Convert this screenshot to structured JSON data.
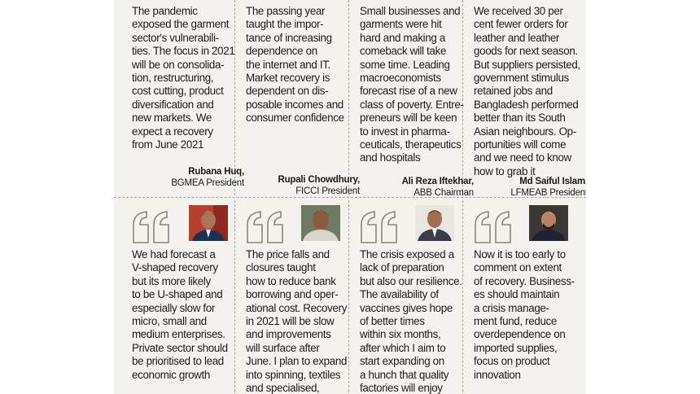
{
  "top_row": [
    {
      "quote": "The pandemic exposed the garment sector's vulnerabili-ties. The focus in 2021 will be on consolida-tion, restructuring, cost cutting, product diversification and new markets. We expect a recovery from June 2021",
      "lines": [
        "The pandemic",
        "exposed the garment",
        "sector's vulnerabili-",
        "ties. The focus in 2021",
        "will be on consolida-",
        "tion, restructuring,",
        "cost cutting, product",
        "diversification and",
        "new markets. We",
        "expect a recovery",
        "from June 2021"
      ],
      "name": "Rubana Huq,",
      "role": "BGMEA President"
    },
    {
      "lines": [
        "The passing year",
        "taught the impor-",
        "tance of increasing",
        "dependence on",
        "the internet and IT.",
        "Market recovery is",
        "dependent on dis-",
        "posable incomes and",
        "consumer confidence"
      ],
      "name": "Rupali Chowdhury,",
      "role": "FICCI President"
    },
    {
      "lines": [
        "Small businesses and",
        "garments were hit",
        "hard and making a",
        "comeback will take",
        "some time. Leading",
        "macroeconomists",
        "forecast rise of a new",
        "class of poverty. Entre-",
        "preneurs will be keen",
        "to invest in pharma-",
        "ceuticals, therapeutics",
        "and hospitals"
      ],
      "name": "Ali Reza Iftekhar,",
      "role": "ABB Chairman"
    },
    {
      "lines": [
        "We received 30 per",
        "cent fewer orders for",
        "leather and leather",
        "goods for next season.",
        "But suppliers persisted,",
        "government stimulus",
        "retained jobs and",
        "Bangladesh performed",
        "better than its South",
        "Asian neighbours. Op-",
        "portunities will come",
        "and we need to know",
        "how to grab it"
      ],
      "name": "Md Saiful Islam,",
      "role": "LFMEAB President"
    }
  ],
  "bottom_row": [
    {
      "lines": [
        "We had forecast a",
        "V-shaped recovery",
        "but its more likely",
        "to be U-shaped and",
        "especially slow for",
        "micro, small and",
        "medium enterprises.",
        "Private sector should",
        "be prioritised to lead",
        "economic growth"
      ],
      "photo": "portrait-man-1"
    },
    {
      "lines": [
        "The price falls and",
        "closures taught",
        "how to reduce bank",
        "borrowing and oper-",
        "ational cost. Recovery",
        "in 2021 will be slow",
        "and improvements",
        "will surface after",
        "June. I plan to expand",
        "into spinning, textiles",
        "and specialised,"
      ],
      "photo": "portrait-man-2"
    },
    {
      "lines": [
        "The crisis exposed a",
        "lack of preparation",
        "but also our resilience.",
        "The availability of",
        "vaccines gives hope",
        "of better times",
        "within six months,",
        "after which I aim to",
        "start expanding on",
        "a hunch that quality",
        "factories will enjoy"
      ],
      "photo": "portrait-man-3"
    },
    {
      "lines": [
        "Now it is too early to",
        "comment on extent",
        "of recovery. Business-",
        "es should maintain",
        "a crisis manage-",
        "ment fund, reduce",
        "overdependence on",
        "imported supplies,",
        "focus on product",
        "innovation"
      ],
      "photo": "portrait-man-4"
    }
  ],
  "colors": {
    "panel": "#f4f2ee",
    "quote_mark": "#8a8580",
    "rule": "#a9a39a"
  }
}
